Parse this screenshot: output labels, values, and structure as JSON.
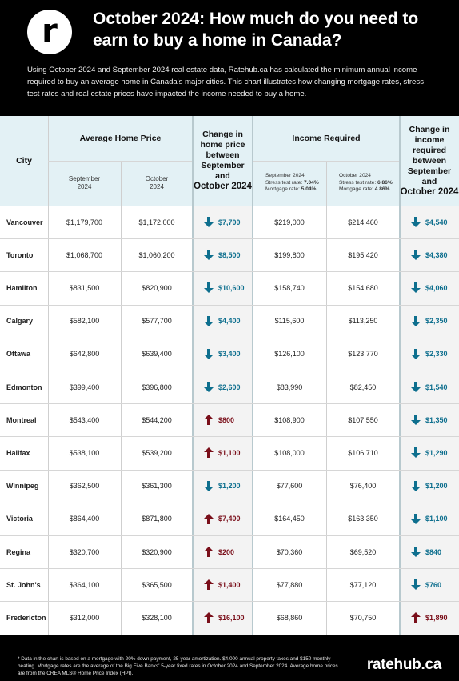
{
  "header": {
    "logo_letter": "r",
    "title": "October 2024: How much do you need to earn to buy a home in Canada?",
    "intro": "Using October 2024 and September 2024 real estate data, Ratehub.ca has calculated the minimum annual income required to buy an average home in Canada's major cities. This chart illustrates how changing mortgage rates, stress test rates and real estate prices have impacted the income needed to buy a home."
  },
  "table": {
    "headers": {
      "city": "City",
      "avg_price": "Average Home Price",
      "sep_2024_l1": "September",
      "sep_2024_l2": "2024",
      "oct_2024_l1": "October",
      "oct_2024_l2": "2024",
      "change_price_l1": "Change in",
      "change_price_l2": "home price",
      "change_price_l3": "between",
      "change_price_l4": "September",
      "change_price_l5": "and",
      "change_price_l6": "October 2024",
      "income_required": "Income Required",
      "inc_sep_title": "September 2024",
      "inc_sep_stress_label": "Stress test rate: ",
      "inc_sep_stress_val": "7.04%",
      "inc_sep_mort_label": "Mortgage rate: ",
      "inc_sep_mort_val": "5.04%",
      "inc_oct_title": "October 2024",
      "inc_oct_stress_label": "Stress test rate: ",
      "inc_oct_stress_val": "6.86%",
      "inc_oct_mort_label": "Mortgage rate: ",
      "inc_oct_mort_val": "4.86%",
      "change_income_l1": "Change in",
      "change_income_l2": "income",
      "change_income_l3": "required",
      "change_income_l4": "between",
      "change_income_l5": "September",
      "change_income_l6": "and",
      "change_income_l7": "October 2024"
    },
    "rows": [
      {
        "city": "Vancouver",
        "sep_price": "$1,179,700",
        "oct_price": "$1,172,000",
        "price_change": "$7,700",
        "price_dir": "down",
        "inc_sep": "$219,000",
        "inc_oct": "$214,460",
        "inc_change": "$4,540",
        "inc_dir": "down"
      },
      {
        "city": "Toronto",
        "sep_price": "$1,068,700",
        "oct_price": "$1,060,200",
        "price_change": "$8,500",
        "price_dir": "down",
        "inc_sep": "$199,800",
        "inc_oct": "$195,420",
        "inc_change": "$4,380",
        "inc_dir": "down"
      },
      {
        "city": "Hamilton",
        "sep_price": "$831,500",
        "oct_price": "$820,900",
        "price_change": "$10,600",
        "price_dir": "down",
        "inc_sep": "$158,740",
        "inc_oct": "$154,680",
        "inc_change": "$4,060",
        "inc_dir": "down"
      },
      {
        "city": "Calgary",
        "sep_price": "$582,100",
        "oct_price": "$577,700",
        "price_change": "$4,400",
        "price_dir": "down",
        "inc_sep": "$115,600",
        "inc_oct": "$113,250",
        "inc_change": "$2,350",
        "inc_dir": "down"
      },
      {
        "city": "Ottawa",
        "sep_price": "$642,800",
        "oct_price": "$639,400",
        "price_change": "$3,400",
        "price_dir": "down",
        "inc_sep": "$126,100",
        "inc_oct": "$123,770",
        "inc_change": "$2,330",
        "inc_dir": "down"
      },
      {
        "city": "Edmonton",
        "sep_price": "$399,400",
        "oct_price": "$396,800",
        "price_change": "$2,600",
        "price_dir": "down",
        "inc_sep": "$83,990",
        "inc_oct": "$82,450",
        "inc_change": "$1,540",
        "inc_dir": "down"
      },
      {
        "city": "Montreal",
        "sep_price": "$543,400",
        "oct_price": "$544,200",
        "price_change": "$800",
        "price_dir": "up",
        "inc_sep": "$108,900",
        "inc_oct": "$107,550",
        "inc_change": "$1,350",
        "inc_dir": "down"
      },
      {
        "city": "Halifax",
        "sep_price": "$538,100",
        "oct_price": "$539,200",
        "price_change": "$1,100",
        "price_dir": "up",
        "inc_sep": "$108,000",
        "inc_oct": "$106,710",
        "inc_change": "$1,290",
        "inc_dir": "down"
      },
      {
        "city": "Winnipeg",
        "sep_price": "$362,500",
        "oct_price": "$361,300",
        "price_change": "$1,200",
        "price_dir": "down",
        "inc_sep": "$77,600",
        "inc_oct": "$76,400",
        "inc_change": "$1,200",
        "inc_dir": "down"
      },
      {
        "city": "Victoria",
        "sep_price": "$864,400",
        "oct_price": "$871,800",
        "price_change": "$7,400",
        "price_dir": "up",
        "inc_sep": "$164,450",
        "inc_oct": "$163,350",
        "inc_change": "$1,100",
        "inc_dir": "down"
      },
      {
        "city": "Regina",
        "sep_price": "$320,700",
        "oct_price": "$320,900",
        "price_change": "$200",
        "price_dir": "up",
        "inc_sep": "$70,360",
        "inc_oct": "$69,520",
        "inc_change": "$840",
        "inc_dir": "down"
      },
      {
        "city": "St. John's",
        "sep_price": "$364,100",
        "oct_price": "$365,500",
        "price_change": "$1,400",
        "price_dir": "up",
        "inc_sep": "$77,880",
        "inc_oct": "$77,120",
        "inc_change": "$760",
        "inc_dir": "down"
      },
      {
        "city": "Fredericton",
        "sep_price": "$312,000",
        "oct_price": "$328,100",
        "price_change": "$16,100",
        "price_dir": "up",
        "inc_sep": "$68,860",
        "inc_oct": "$70,750",
        "inc_change": "$1,890",
        "inc_dir": "up"
      }
    ]
  },
  "footer": {
    "note": "* Data in the chart is based on a mortgage with 20% down payment, 25-year amortization. $4,000 annual property taxes and $150 monthly heating. Mortgage rates are the average of the Big Five Banks' 5-year fixed rates in October 2024 and September 2024. Average home prices are from the CREA MLS® Home Price Index (HPI).",
    "brand": "ratehub.ca"
  },
  "colors": {
    "down": "#0e6f8e",
    "up": "#7a0f1a",
    "header_bg": "#e3f1f5",
    "change_col_bg": "#f3f3f3"
  },
  "icons": {
    "down": "arrow-down-icon",
    "up": "arrow-up-icon"
  }
}
